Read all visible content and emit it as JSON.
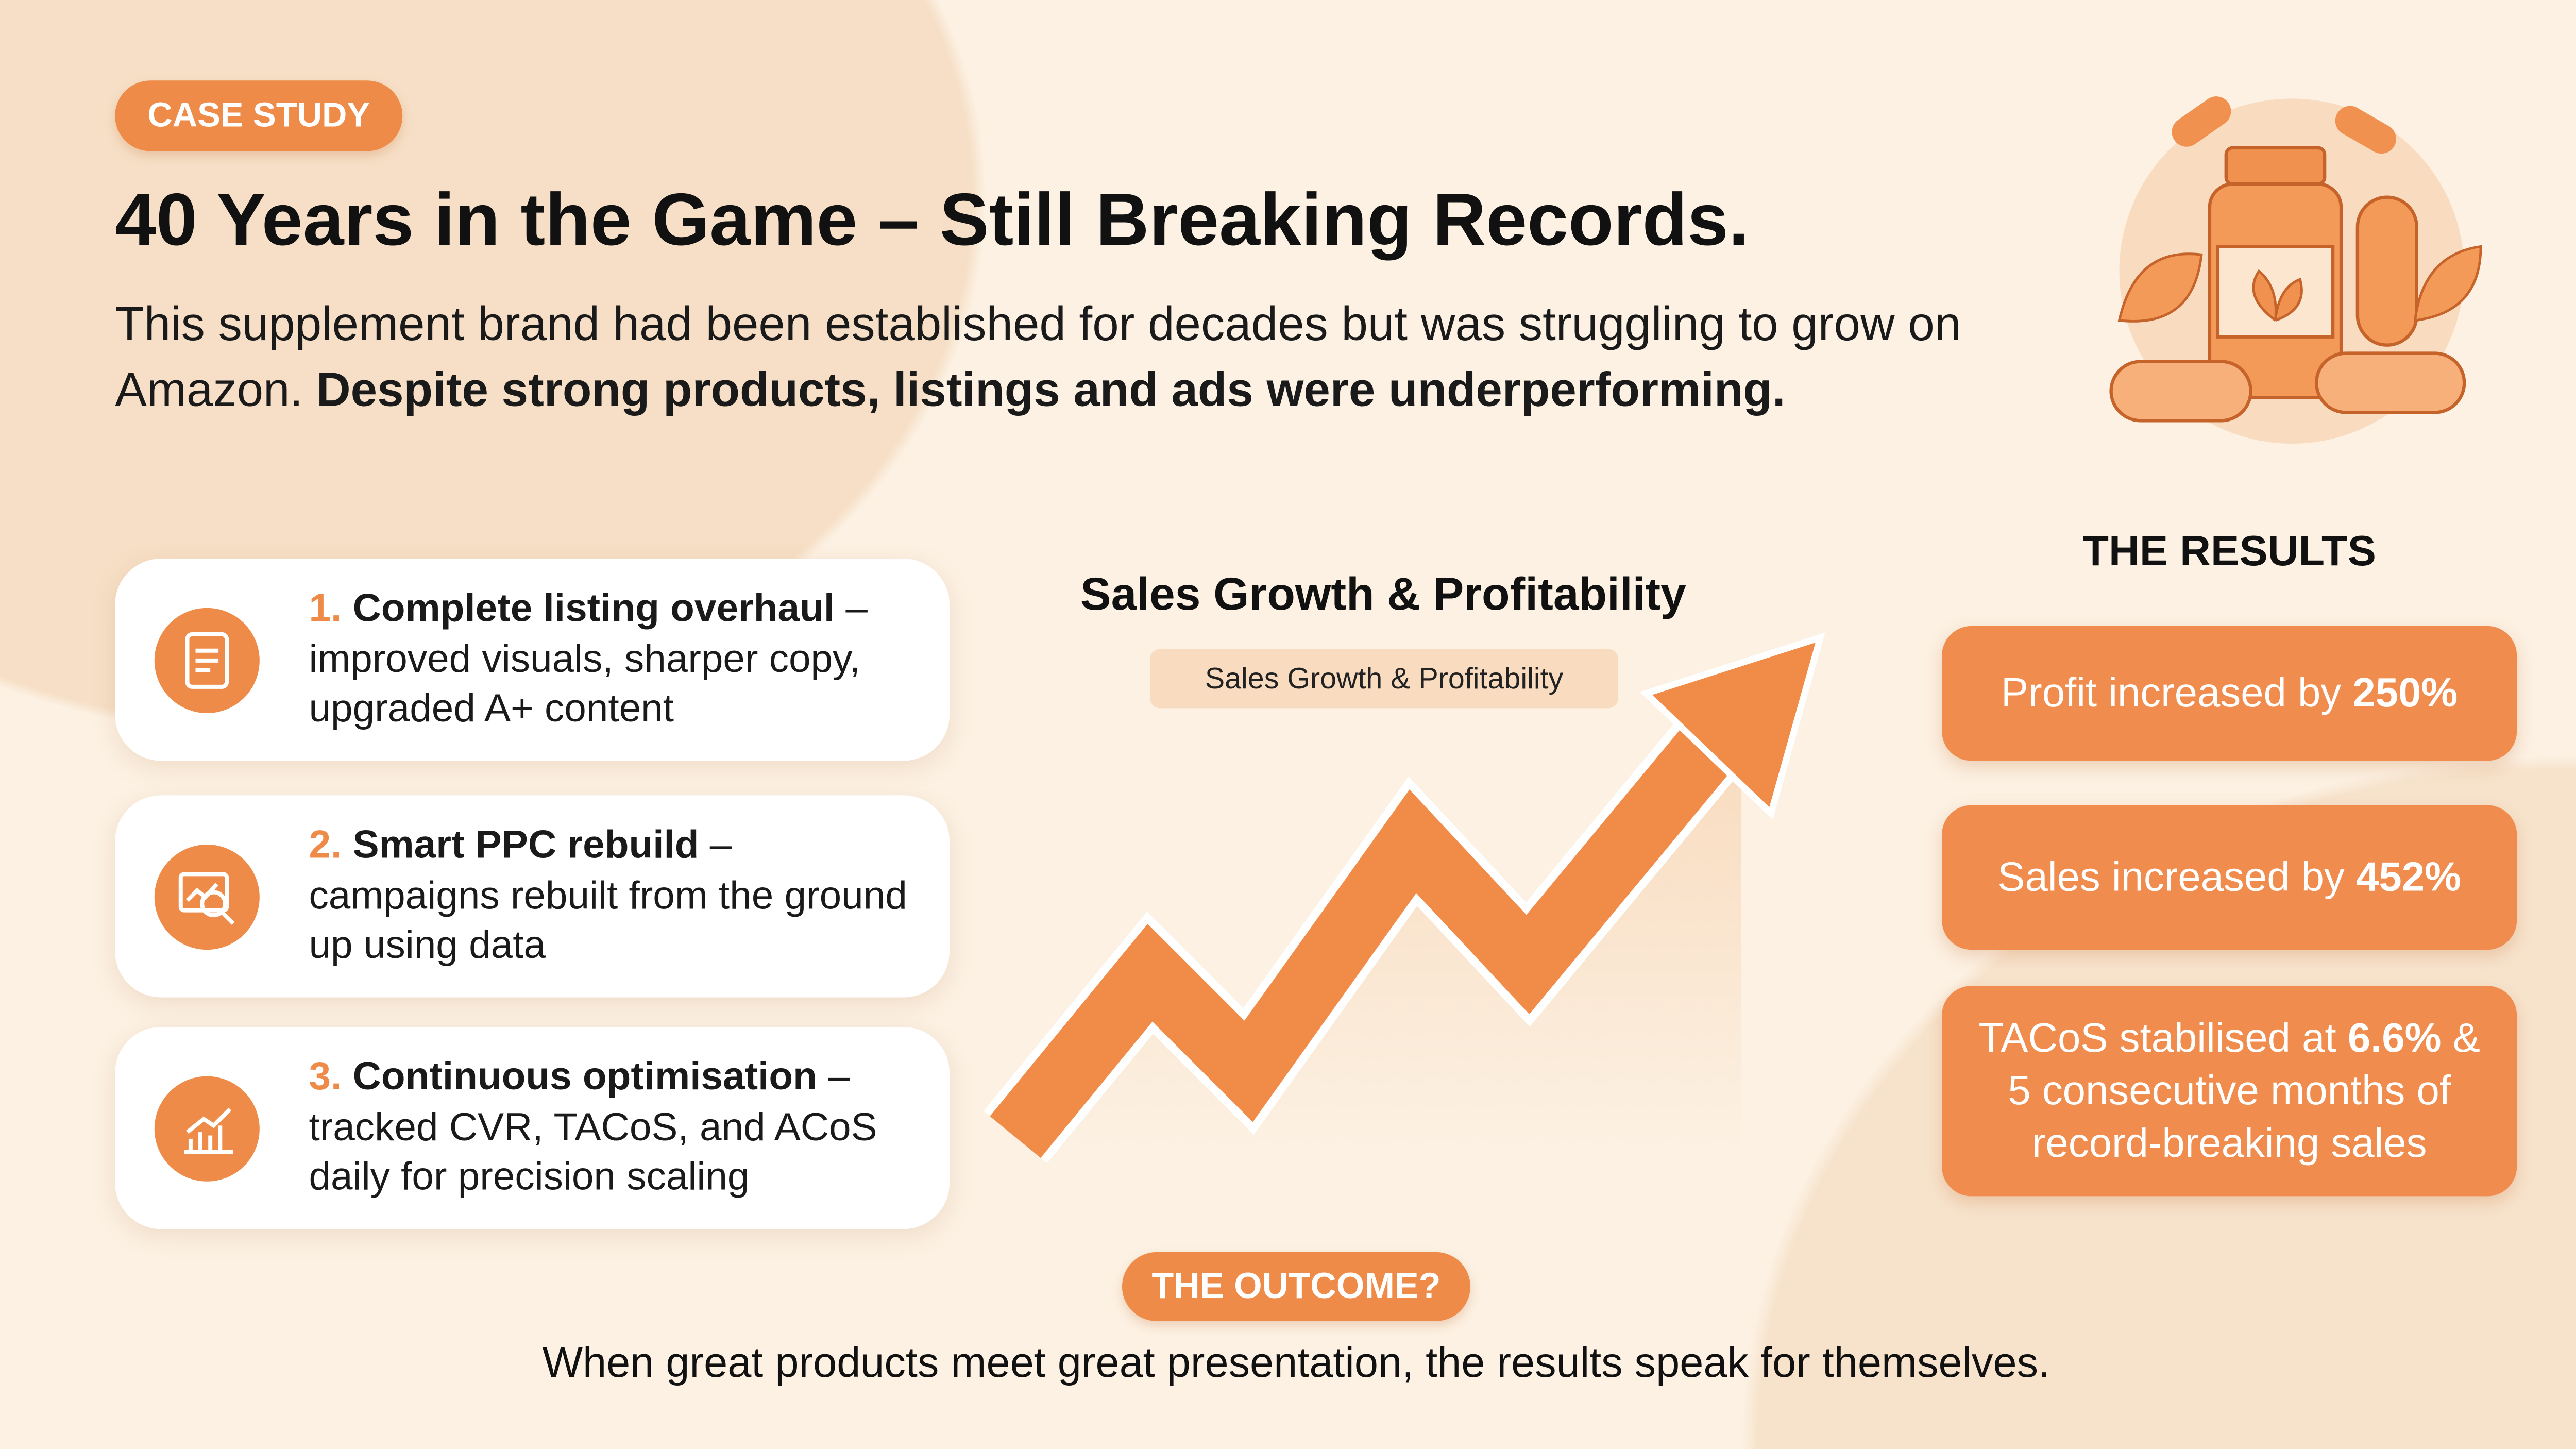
{
  "header": {
    "tag": "CASE STUDY",
    "title": "40 Years in the Game – Still Breaking Records.",
    "intro": "This supplement brand had been established for decades but was struggling to grow on Amazon.",
    "intro_bold": "Despite strong products, listings and ads were underperforming."
  },
  "steps": [
    {
      "number": "1.",
      "title": "Complete listing overhaul",
      "text": "– improved visuals, sharper copy, upgraded A+ content"
    },
    {
      "number": "2.",
      "title": "Smart PPC rebuild",
      "text": "– campaigns rebuilt from the ground up using data"
    },
    {
      "number": "3.",
      "title": "Continuous optimisation",
      "text": "– tracked CVR, TACoS, and ACoS daily for precision scaling"
    }
  ],
  "graphic": {
    "title": "Sales Growth & Profitability",
    "label": "Sales Growth & Profitability"
  },
  "results": {
    "heading": "THE RESULTS",
    "items": [
      {
        "text": "Profit increased by",
        "highlight": "250%"
      },
      {
        "text": "Sales increased by",
        "highlight": "452%"
      },
      {
        "text": "TACoS stabilised at",
        "highlight": "6.6%",
        "rest": "& 5 consecutive months of record-breaking sales"
      }
    ]
  },
  "outcome": {
    "tag": "THE OUTCOME?",
    "text": "When great products meet great presentation, the results speak for themselves."
  }
}
